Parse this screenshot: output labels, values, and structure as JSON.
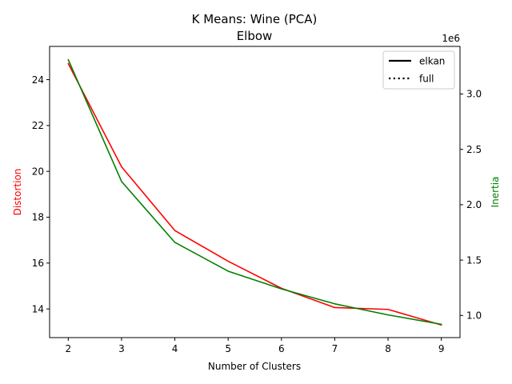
{
  "chart_data": {
    "type": "line",
    "title_line1": "K Means: Wine (PCA)",
    "title_line2": "Elbow",
    "xlabel": "Number of Clusters",
    "ylabel_left": "Distortion",
    "ylabel_right": "Inertia",
    "right_axis_offset_label": "1e6",
    "x": [
      2,
      3,
      4,
      5,
      6,
      7,
      8,
      9
    ],
    "xlim": [
      1.65,
      9.35
    ],
    "ylim_left": [
      12.75,
      25.45
    ],
    "ylim_right": [
      0.8,
      3.43
    ],
    "x_ticks": [
      2,
      3,
      4,
      5,
      6,
      7,
      8,
      9
    ],
    "x_tick_labels": [
      "2",
      "3",
      "4",
      "5",
      "6",
      "7",
      "8",
      "9"
    ],
    "left_ticks": [
      14,
      16,
      18,
      20,
      22,
      24
    ],
    "left_tick_labels": [
      "14",
      "16",
      "18",
      "20",
      "22",
      "24"
    ],
    "right_ticks": [
      1.0,
      1.5,
      2.0,
      2.5,
      3.0
    ],
    "right_tick_labels": [
      "1.0",
      "1.5",
      "2.0",
      "2.5",
      "3.0"
    ],
    "series": [
      {
        "axis": "left",
        "color": "#ff0000",
        "linestyle": "solid",
        "values": [
          24.7,
          20.2,
          17.42,
          16.08,
          14.9,
          14.06,
          13.98,
          13.3
        ]
      },
      {
        "axis": "right",
        "color": "#008000",
        "linestyle": "solid",
        "values": [
          3.31,
          2.21,
          1.66,
          1.4,
          1.24,
          1.105,
          1.005,
          0.92
        ]
      }
    ],
    "legend": {
      "placement": "upper-right",
      "entries": [
        {
          "label": "elkan",
          "linestyle": "solid",
          "color": "#000000"
        },
        {
          "label": "full",
          "linestyle": "dotted",
          "color": "#000000"
        }
      ]
    },
    "colors": {
      "left_axis_label": "#ff0000",
      "right_axis_label": "#008000",
      "axes": "#000000"
    },
    "grid": false
  }
}
